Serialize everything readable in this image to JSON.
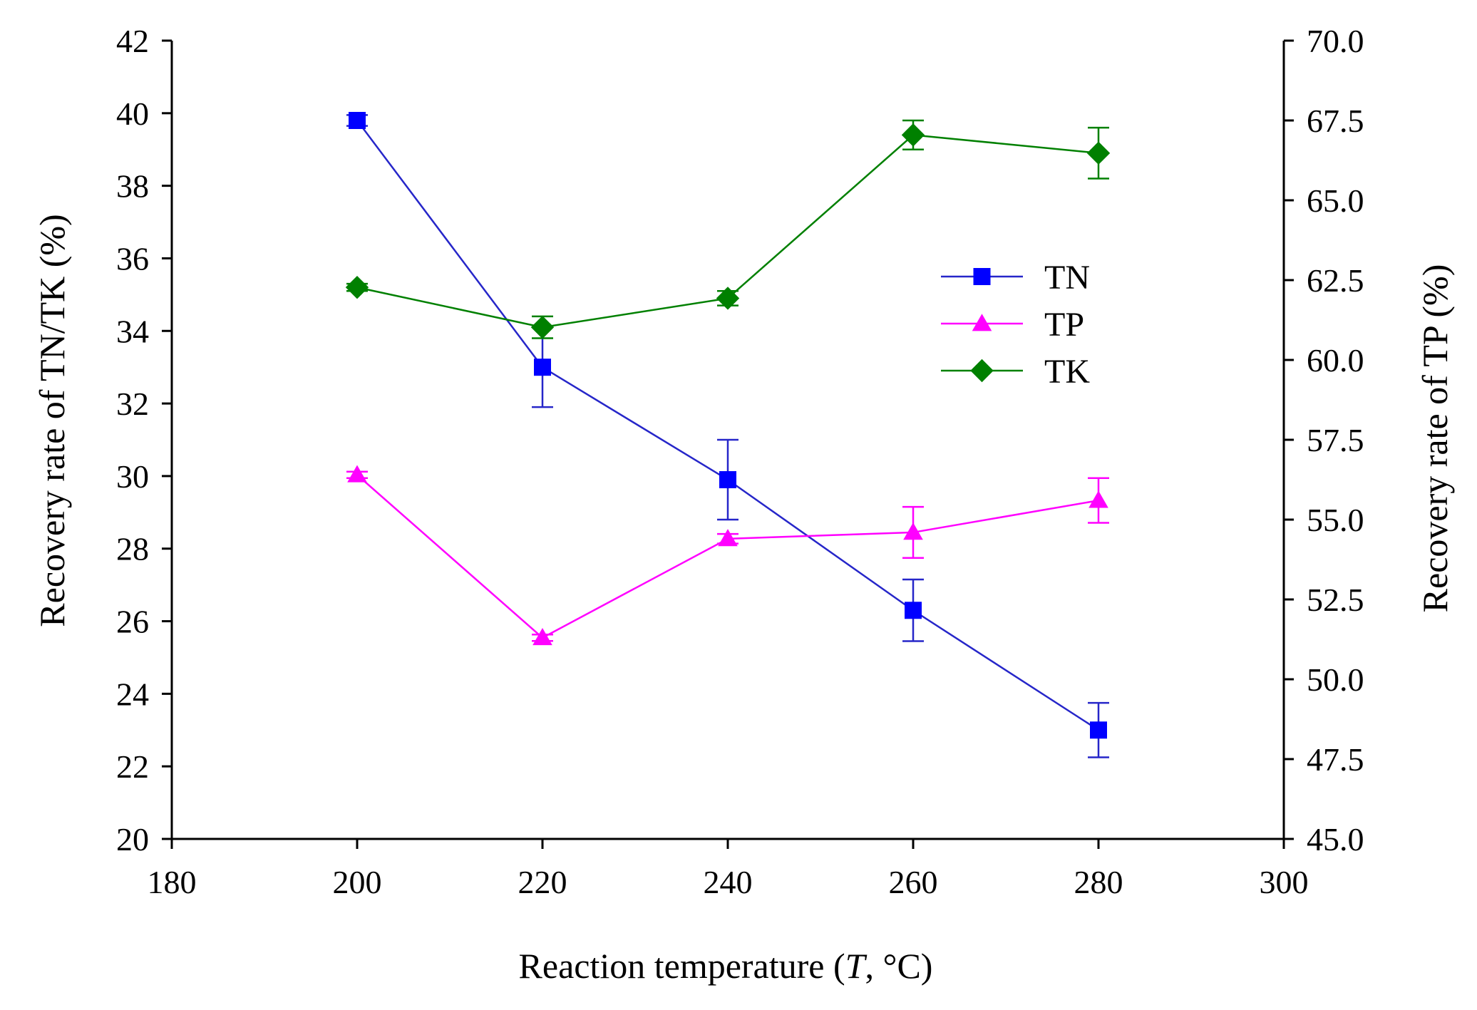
{
  "chart_data": {
    "type": "line",
    "xlabel_main": "Reaction temperature (",
    "xlabel_var": "T",
    "xlabel_unit": ", °C)",
    "ylabel_left": "Recovery rate of TN/TK (%)",
    "ylabel_right": "Recovery rate of TP (%)",
    "xlim": [
      180,
      300
    ],
    "x_ticks": [
      180,
      200,
      220,
      240,
      260,
      280,
      300
    ],
    "x_tick_labels": [
      "180",
      "200",
      "220",
      "240",
      "260",
      "280",
      "300"
    ],
    "ylim_left": [
      20,
      42
    ],
    "y_left_ticks": [
      20,
      22,
      24,
      26,
      28,
      30,
      32,
      34,
      36,
      38,
      40,
      42
    ],
    "y_left_tick_labels": [
      "20",
      "22",
      "24",
      "26",
      "28",
      "30",
      "32",
      "34",
      "36",
      "38",
      "40",
      "42"
    ],
    "ylim_right": [
      45,
      70
    ],
    "y_right_ticks": [
      45,
      47.5,
      50,
      52.5,
      55,
      57.5,
      60,
      62.5,
      65,
      67.5,
      70
    ],
    "y_right_tick_labels": [
      "45.0",
      "47.5",
      "50.0",
      "52.5",
      "55.0",
      "57.5",
      "60.0",
      "62.5",
      "65.0",
      "67.5",
      "70.0"
    ],
    "x": [
      200,
      220,
      240,
      260,
      280
    ],
    "series": [
      {
        "name": "TN",
        "axis": "left",
        "marker": "square",
        "color": "#0000FF",
        "line_color": "#2626C9",
        "values": [
          39.8,
          33.0,
          29.9,
          26.3,
          23.0
        ],
        "errors": [
          0.15,
          1.1,
          1.1,
          0.85,
          0.75
        ]
      },
      {
        "name": "TP",
        "axis": "right",
        "marker": "triangle",
        "color": "#FF00FF",
        "line_color": "#FF00FF",
        "values": [
          56.4,
          51.3,
          54.4,
          54.6,
          55.6
        ],
        "errors": [
          0.1,
          0.1,
          0.15,
          0.8,
          0.7
        ]
      },
      {
        "name": "TK",
        "axis": "left",
        "marker": "diamond",
        "color": "#008000",
        "line_color": "#008000",
        "values": [
          35.2,
          34.1,
          34.9,
          39.4,
          38.9
        ],
        "errors": [
          0.1,
          0.3,
          0.2,
          0.4,
          0.7
        ]
      }
    ],
    "legend": {
      "placement": "center-right",
      "entries": [
        "TN",
        "TP",
        "TK"
      ]
    }
  }
}
